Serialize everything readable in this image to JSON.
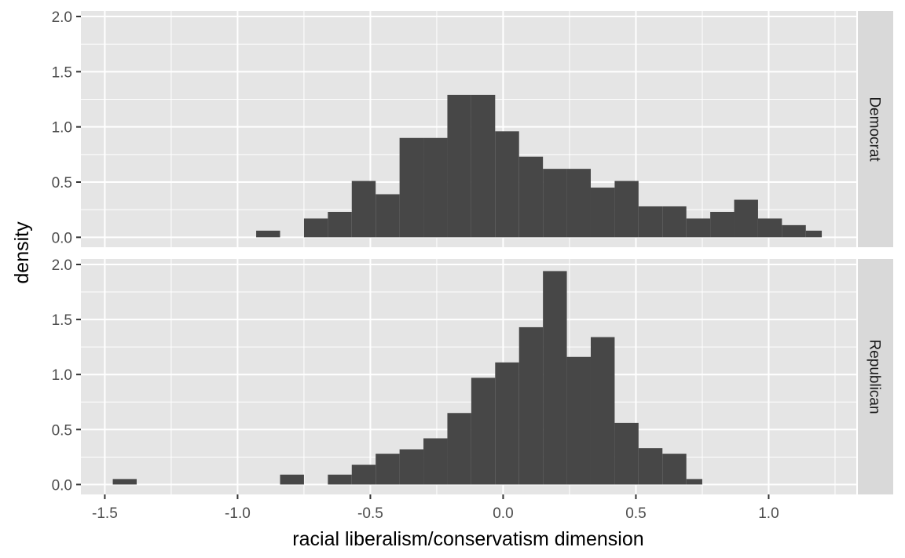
{
  "colors": {
    "panel_background": "#e5e5e5",
    "gridline": "#ffffff",
    "bar_fill": "#474747",
    "strip_background": "#d9d9d9",
    "tick_text": "#4d4d4d"
  },
  "chart_data": {
    "type": "bar",
    "chart_kind": "faceted histogram",
    "xlabel": "racial liberalism/conservatism dimension",
    "ylabel": "density",
    "xlim": [
      -1.59,
      1.33
    ],
    "ylim": [
      -0.09,
      2.05
    ],
    "x_ticks": [
      -1.5,
      -1.0,
      -0.5,
      0.0,
      0.5,
      1.0
    ],
    "x_tick_labels": [
      "-1.5",
      "-1.0",
      "-0.5",
      "0.0",
      "0.5",
      "1.0"
    ],
    "y_ticks": [
      0.0,
      0.5,
      1.0,
      1.5,
      2.0
    ],
    "y_tick_labels": [
      "0.0",
      "0.5",
      "1.0",
      "1.5",
      "2.0"
    ],
    "grid": true,
    "bin_width": 0.09,
    "panels": [
      {
        "facet": "Democrat",
        "bins": [
          {
            "x0": -0.93,
            "x1": -0.84,
            "density": 0.06
          },
          {
            "x0": -0.75,
            "x1": -0.66,
            "density": 0.17
          },
          {
            "x0": -0.66,
            "x1": -0.57,
            "density": 0.23
          },
          {
            "x0": -0.57,
            "x1": -0.48,
            "density": 0.51
          },
          {
            "x0": -0.48,
            "x1": -0.39,
            "density": 0.39
          },
          {
            "x0": -0.39,
            "x1": -0.3,
            "density": 0.9
          },
          {
            "x0": -0.3,
            "x1": -0.21,
            "density": 0.9
          },
          {
            "x0": -0.21,
            "x1": -0.12,
            "density": 1.29
          },
          {
            "x0": -0.12,
            "x1": -0.03,
            "density": 1.29
          },
          {
            "x0": -0.03,
            "x1": 0.06,
            "density": 0.96
          },
          {
            "x0": 0.06,
            "x1": 0.15,
            "density": 0.73
          },
          {
            "x0": 0.15,
            "x1": 0.24,
            "density": 0.62
          },
          {
            "x0": 0.24,
            "x1": 0.33,
            "density": 0.62
          },
          {
            "x0": 0.33,
            "x1": 0.42,
            "density": 0.45
          },
          {
            "x0": 0.42,
            "x1": 0.51,
            "density": 0.51
          },
          {
            "x0": 0.51,
            "x1": 0.6,
            "density": 0.28
          },
          {
            "x0": 0.6,
            "x1": 0.69,
            "density": 0.28
          },
          {
            "x0": 0.69,
            "x1": 0.78,
            "density": 0.17
          },
          {
            "x0": 0.78,
            "x1": 0.87,
            "density": 0.23
          },
          {
            "x0": 0.87,
            "x1": 0.96,
            "density": 0.34
          },
          {
            "x0": 0.96,
            "x1": 1.05,
            "density": 0.17
          },
          {
            "x0": 1.05,
            "x1": 1.14,
            "density": 0.11
          },
          {
            "x0": 1.14,
            "x1": 1.2,
            "density": 0.06
          }
        ]
      },
      {
        "facet": "Republican",
        "bins": [
          {
            "x0": -1.47,
            "x1": -1.38,
            "density": 0.05
          },
          {
            "x0": -0.84,
            "x1": -0.75,
            "density": 0.09
          },
          {
            "x0": -0.66,
            "x1": -0.57,
            "density": 0.09
          },
          {
            "x0": -0.57,
            "x1": -0.48,
            "density": 0.18
          },
          {
            "x0": -0.48,
            "x1": -0.39,
            "density": 0.28
          },
          {
            "x0": -0.39,
            "x1": -0.3,
            "density": 0.32
          },
          {
            "x0": -0.3,
            "x1": -0.21,
            "density": 0.42
          },
          {
            "x0": -0.21,
            "x1": -0.12,
            "density": 0.65
          },
          {
            "x0": -0.12,
            "x1": -0.03,
            "density": 0.97
          },
          {
            "x0": -0.03,
            "x1": 0.06,
            "density": 1.11
          },
          {
            "x0": 0.06,
            "x1": 0.15,
            "density": 1.43
          },
          {
            "x0": 0.15,
            "x1": 0.24,
            "density": 1.94
          },
          {
            "x0": 0.24,
            "x1": 0.33,
            "density": 1.16
          },
          {
            "x0": 0.33,
            "x1": 0.42,
            "density": 1.34
          },
          {
            "x0": 0.42,
            "x1": 0.51,
            "density": 0.56
          },
          {
            "x0": 0.51,
            "x1": 0.6,
            "density": 0.33
          },
          {
            "x0": 0.6,
            "x1": 0.69,
            "density": 0.28
          },
          {
            "x0": 0.69,
            "x1": 0.75,
            "density": 0.05
          }
        ]
      }
    ]
  }
}
